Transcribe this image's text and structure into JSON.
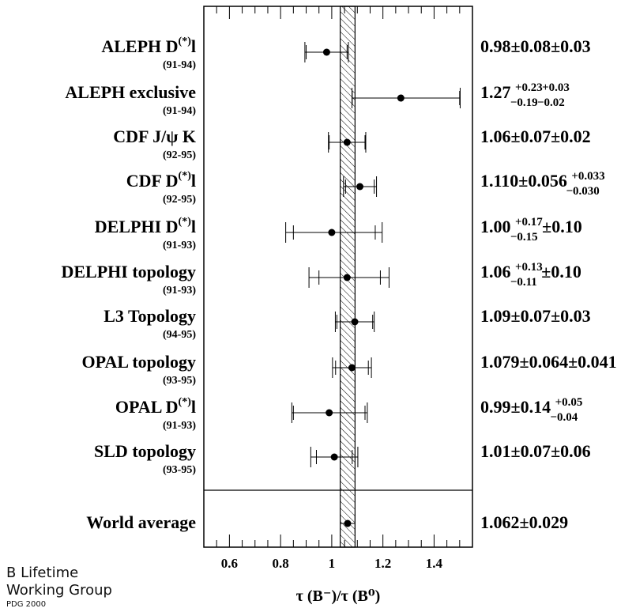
{
  "chart_data": {
    "type": "scatter",
    "xlabel": "τ (B⁻)/τ (B⁰)",
    "xlim": [
      0.5,
      1.55
    ],
    "xticks": [
      0.6,
      0.8,
      1,
      1.2,
      1.4
    ],
    "band": [
      1.033,
      1.091
    ],
    "measurements": [
      {
        "name": "ALEPH D(*)l",
        "years": "(91-94)",
        "value": 0.98,
        "stat_lo": 0.08,
        "stat_hi": 0.08,
        "tot_lo": 0.085,
        "tot_hi": 0.085,
        "result": "0.98±0.08±0.03"
      },
      {
        "name": "ALEPH exclusive",
        "years": "(91-94)",
        "value": 1.27,
        "stat_lo": 0.19,
        "stat_hi": 0.23,
        "tot_lo": 0.191,
        "tot_hi": 0.232,
        "result": "1.27 +0.23 −0.19 +0.03 −0.02"
      },
      {
        "name": "CDF J/ψ K",
        "years": "(92-95)",
        "value": 1.06,
        "stat_lo": 0.07,
        "stat_hi": 0.07,
        "tot_lo": 0.073,
        "tot_hi": 0.073,
        "result": "1.06±0.07±0.02"
      },
      {
        "name": "CDF D(*)l",
        "years": "(92-95)",
        "value": 1.11,
        "stat_lo": 0.056,
        "stat_hi": 0.056,
        "tot_lo": 0.064,
        "tot_hi": 0.065,
        "result": "1.110±0.056 +0.033 −0.030"
      },
      {
        "name": "DELPHI D(*)l",
        "years": "(91-93)",
        "value": 1.0,
        "stat_lo": 0.15,
        "stat_hi": 0.17,
        "tot_lo": 0.18,
        "tot_hi": 0.197,
        "result": "1.00 +0.17 −0.15 ±0.10"
      },
      {
        "name": "DELPHI topology",
        "years": "(91-93)",
        "value": 1.06,
        "stat_lo": 0.11,
        "stat_hi": 0.13,
        "tot_lo": 0.149,
        "tot_hi": 0.164,
        "result": "1.06 +0.13 −0.11 ±0.10"
      },
      {
        "name": "L3 Topology",
        "years": "(94-95)",
        "value": 1.09,
        "stat_lo": 0.07,
        "stat_hi": 0.07,
        "tot_lo": 0.076,
        "tot_hi": 0.076,
        "result": "1.09±0.07±0.03"
      },
      {
        "name": "OPAL topology",
        "years": "(93-95)",
        "value": 1.079,
        "stat_lo": 0.064,
        "stat_hi": 0.064,
        "tot_lo": 0.076,
        "tot_hi": 0.076,
        "result": "1.079±0.064±0.041"
      },
      {
        "name": "OPAL D(*)l",
        "years": "(91-93)",
        "value": 0.99,
        "stat_lo": 0.14,
        "stat_hi": 0.14,
        "tot_lo": 0.146,
        "tot_hi": 0.149,
        "result": "0.99±0.14 +0.05 −0.04"
      },
      {
        "name": "SLD topology",
        "years": "(93-95)",
        "value": 1.01,
        "stat_lo": 0.07,
        "stat_hi": 0.07,
        "tot_lo": 0.092,
        "tot_hi": 0.092,
        "result": "1.01±0.07±0.06"
      }
    ],
    "average": {
      "name": "World average",
      "value": 1.062,
      "err": 0.029,
      "result": "1.062±0.029"
    }
  },
  "credit": {
    "line1": "B Lifetime",
    "line2": "Working Group",
    "line3": "PDG 2000"
  }
}
